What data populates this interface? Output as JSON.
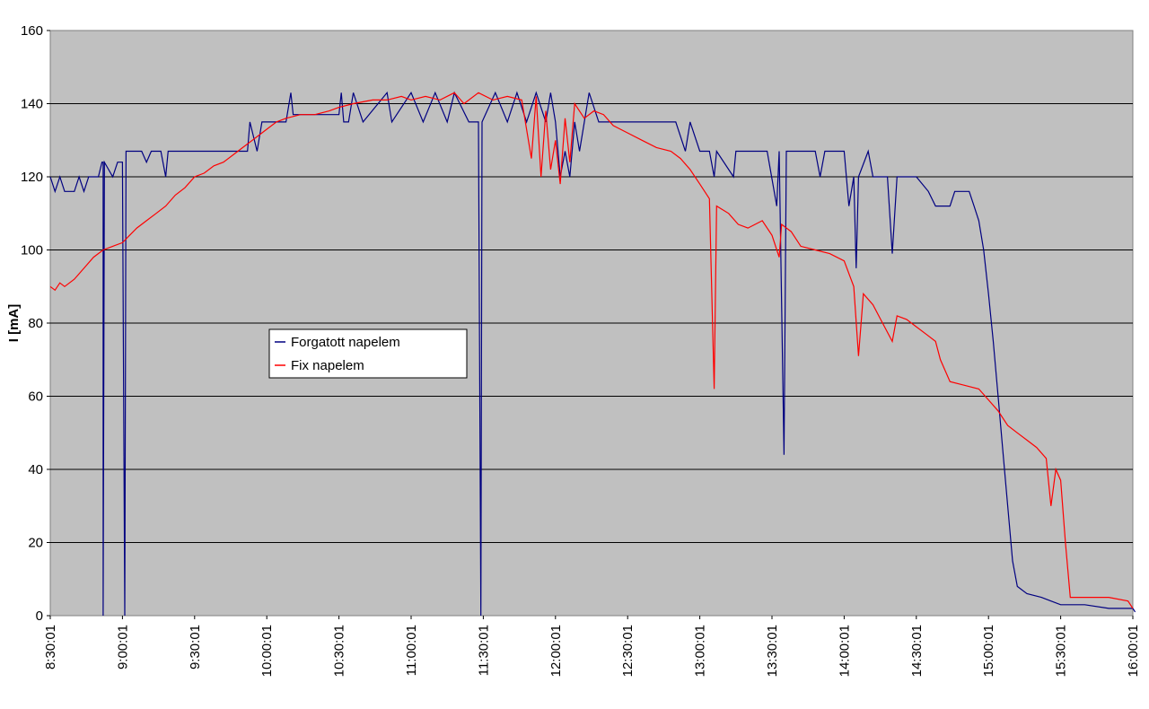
{
  "chart_data": {
    "type": "line",
    "title": "",
    "xlabel": "",
    "ylabel": "I [mA]",
    "ylim": [
      0,
      160
    ],
    "xlim": [
      "8:30:01",
      "16:00:01"
    ],
    "yticks": [
      0,
      20,
      40,
      60,
      80,
      100,
      120,
      140,
      160
    ],
    "xticks": [
      "8:30:01",
      "9:00:01",
      "9:30:01",
      "10:00:01",
      "10:30:01",
      "11:00:01",
      "11:30:01",
      "12:00:01",
      "12:30:01",
      "13:00:01",
      "13:30:01",
      "14:00:01",
      "14:30:01",
      "15:00:01",
      "15:30:01",
      "16:00:01"
    ],
    "grid": "horizontal",
    "background": "#c0c0c0",
    "legend_position": "middle-left",
    "series": [
      {
        "name": "Forgatott napelem",
        "color": "#000080",
        "points": [
          [
            "8:30:01",
            120
          ],
          [
            "8:32:00",
            116
          ],
          [
            "8:34:00",
            120
          ],
          [
            "8:36:00",
            116
          ],
          [
            "8:40:00",
            116
          ],
          [
            "8:42:00",
            120
          ],
          [
            "8:44:00",
            116
          ],
          [
            "8:46:00",
            120
          ],
          [
            "8:50:00",
            120
          ],
          [
            "8:52:00",
            124
          ],
          [
            "8:56:00",
            120
          ],
          [
            "8:58:00",
            124
          ],
          [
            "8:51:30",
            124
          ],
          [
            "8:52:00",
            0
          ],
          [
            "8:52:30",
            124
          ],
          [
            "9:00:00",
            124
          ],
          [
            "9:01:00",
            0
          ],
          [
            "9:01:30",
            127
          ],
          [
            "9:08:00",
            127
          ],
          [
            "9:10:00",
            124
          ],
          [
            "9:12:00",
            127
          ],
          [
            "9:16:00",
            127
          ],
          [
            "9:18:00",
            120
          ],
          [
            "9:19:00",
            127
          ],
          [
            "9:30:00",
            127
          ],
          [
            "9:45:00",
            127
          ],
          [
            "9:52:00",
            127
          ],
          [
            "9:53:00",
            135
          ],
          [
            "9:56:00",
            127
          ],
          [
            "9:58:00",
            135
          ],
          [
            "10:02:00",
            135
          ],
          [
            "10:08:00",
            135
          ],
          [
            "10:10:00",
            143
          ],
          [
            "10:11:00",
            137
          ],
          [
            "10:30:00",
            137
          ],
          [
            "10:31:00",
            143
          ],
          [
            "10:32:00",
            135
          ],
          [
            "10:34:00",
            135
          ],
          [
            "10:36:00",
            143
          ],
          [
            "10:40:00",
            135
          ],
          [
            "10:50:00",
            143
          ],
          [
            "10:52:00",
            135
          ],
          [
            "11:00:00",
            143
          ],
          [
            "11:05:00",
            135
          ],
          [
            "11:10:00",
            143
          ],
          [
            "11:15:00",
            135
          ],
          [
            "11:18:00",
            143
          ],
          [
            "11:24:00",
            135
          ],
          [
            "11:28:00",
            135
          ],
          [
            "11:29:00",
            0
          ],
          [
            "11:29:30",
            135
          ],
          [
            "11:35:00",
            143
          ],
          [
            "11:40:00",
            135
          ],
          [
            "11:44:00",
            143
          ],
          [
            "11:48:00",
            135
          ],
          [
            "11:52:00",
            143
          ],
          [
            "11:56:00",
            135
          ],
          [
            "11:58:00",
            143
          ],
          [
            "12:00:00",
            135
          ],
          [
            "12:02:00",
            120
          ],
          [
            "12:04:00",
            127
          ],
          [
            "12:06:00",
            120
          ],
          [
            "12:08:00",
            135
          ],
          [
            "12:10:00",
            127
          ],
          [
            "12:14:00",
            143
          ],
          [
            "12:18:00",
            135
          ],
          [
            "12:20:00",
            135
          ],
          [
            "12:40:00",
            135
          ],
          [
            "12:50:00",
            135
          ],
          [
            "12:54:00",
            127
          ],
          [
            "12:56:00",
            135
          ],
          [
            "13:00:00",
            127
          ],
          [
            "13:04:00",
            127
          ],
          [
            "13:06:00",
            120
          ],
          [
            "13:07:00",
            127
          ],
          [
            "13:14:00",
            120
          ],
          [
            "13:15:00",
            127
          ],
          [
            "13:28:00",
            127
          ],
          [
            "13:32:00",
            112
          ],
          [
            "13:33:00",
            127
          ],
          [
            "13:35:00",
            44
          ],
          [
            "13:36:00",
            127
          ],
          [
            "13:48:00",
            127
          ],
          [
            "13:50:00",
            120
          ],
          [
            "13:52:00",
            127
          ],
          [
            "14:00:00",
            127
          ],
          [
            "14:02:00",
            112
          ],
          [
            "14:04:00",
            120
          ],
          [
            "14:05:00",
            95
          ],
          [
            "14:06:00",
            120
          ],
          [
            "14:10:00",
            127
          ],
          [
            "14:12:00",
            120
          ],
          [
            "14:18:00",
            120
          ],
          [
            "14:20:00",
            99
          ],
          [
            "14:22:00",
            120
          ],
          [
            "14:30:00",
            120
          ],
          [
            "14:35:00",
            116
          ],
          [
            "14:38:00",
            112
          ],
          [
            "14:44:00",
            112
          ],
          [
            "14:46:00",
            116
          ],
          [
            "14:52:00",
            116
          ],
          [
            "14:54:00",
            112
          ],
          [
            "14:56:00",
            108
          ],
          [
            "14:58:00",
            100
          ],
          [
            "15:00:00",
            88
          ],
          [
            "15:02:00",
            75
          ],
          [
            "15:04:00",
            60
          ],
          [
            "15:06:00",
            45
          ],
          [
            "15:08:00",
            30
          ],
          [
            "15:10:00",
            15
          ],
          [
            "15:12:00",
            8
          ],
          [
            "15:16:00",
            6
          ],
          [
            "15:22:00",
            5
          ],
          [
            "15:26:00",
            4
          ],
          [
            "15:30:00",
            3
          ],
          [
            "15:40:00",
            3
          ],
          [
            "15:50:00",
            2
          ],
          [
            "16:00:00",
            2
          ],
          [
            "16:01:00",
            1
          ]
        ]
      },
      {
        "name": "Fix napelem",
        "color": "#ff0000",
        "points": [
          [
            "8:30:01",
            90
          ],
          [
            "8:32:00",
            89
          ],
          [
            "8:34:00",
            91
          ],
          [
            "8:36:00",
            90
          ],
          [
            "8:40:00",
            92
          ],
          [
            "8:44:00",
            95
          ],
          [
            "8:48:00",
            98
          ],
          [
            "8:52:00",
            100
          ],
          [
            "8:56:00",
            101
          ],
          [
            "9:00:00",
            102
          ],
          [
            "9:03:00",
            104
          ],
          [
            "9:06:00",
            106
          ],
          [
            "9:10:00",
            108
          ],
          [
            "9:14:00",
            110
          ],
          [
            "9:18:00",
            112
          ],
          [
            "9:22:00",
            115
          ],
          [
            "9:26:00",
            117
          ],
          [
            "9:30:00",
            120
          ],
          [
            "9:34:00",
            121
          ],
          [
            "9:38:00",
            123
          ],
          [
            "9:42:00",
            124
          ],
          [
            "9:46:00",
            126
          ],
          [
            "9:50:00",
            128
          ],
          [
            "9:54:00",
            130
          ],
          [
            "9:58:00",
            132
          ],
          [
            "10:00:00",
            133
          ],
          [
            "10:04:00",
            135
          ],
          [
            "10:08:00",
            136
          ],
          [
            "10:14:00",
            137
          ],
          [
            "10:20:00",
            137
          ],
          [
            "10:26:00",
            138
          ],
          [
            "10:30:00",
            139
          ],
          [
            "10:36:00",
            140
          ],
          [
            "10:44:00",
            141
          ],
          [
            "10:50:00",
            141
          ],
          [
            "10:56:00",
            142
          ],
          [
            "11:00:00",
            141
          ],
          [
            "11:06:00",
            142
          ],
          [
            "11:12:00",
            141
          ],
          [
            "11:18:00",
            143
          ],
          [
            "11:22:00",
            140
          ],
          [
            "11:28:00",
            143
          ],
          [
            "11:34:00",
            141
          ],
          [
            "11:40:00",
            142
          ],
          [
            "11:46:00",
            141
          ],
          [
            "11:50:00",
            125
          ],
          [
            "11:52:00",
            142
          ],
          [
            "11:54:00",
            120
          ],
          [
            "11:56:00",
            138
          ],
          [
            "11:58:00",
            122
          ],
          [
            "12:00:00",
            130
          ],
          [
            "12:02:00",
            118
          ],
          [
            "12:04:00",
            136
          ],
          [
            "12:06:00",
            124
          ],
          [
            "12:08:00",
            140
          ],
          [
            "12:12:00",
            136
          ],
          [
            "12:16:00",
            138
          ],
          [
            "12:20:00",
            137
          ],
          [
            "12:24:00",
            134
          ],
          [
            "12:30:00",
            132
          ],
          [
            "12:36:00",
            130
          ],
          [
            "12:42:00",
            128
          ],
          [
            "12:48:00",
            127
          ],
          [
            "12:52:00",
            125
          ],
          [
            "12:56:00",
            122
          ],
          [
            "13:00:00",
            118
          ],
          [
            "13:04:00",
            114
          ],
          [
            "13:06:00",
            62
          ],
          [
            "13:07:00",
            112
          ],
          [
            "13:12:00",
            110
          ],
          [
            "13:16:00",
            107
          ],
          [
            "13:20:00",
            106
          ],
          [
            "13:26:00",
            108
          ],
          [
            "13:30:00",
            104
          ],
          [
            "13:33:00",
            98
          ],
          [
            "13:34:00",
            107
          ],
          [
            "13:38:00",
            105
          ],
          [
            "13:42:00",
            101
          ],
          [
            "13:48:00",
            100
          ],
          [
            "13:54:00",
            99
          ],
          [
            "14:00:00",
            97
          ],
          [
            "14:04:00",
            90
          ],
          [
            "14:06:00",
            71
          ],
          [
            "14:08:00",
            88
          ],
          [
            "14:12:00",
            85
          ],
          [
            "14:16:00",
            80
          ],
          [
            "14:20:00",
            75
          ],
          [
            "14:22:00",
            82
          ],
          [
            "14:26:00",
            81
          ],
          [
            "14:30:00",
            79
          ],
          [
            "14:34:00",
            77
          ],
          [
            "14:38:00",
            75
          ],
          [
            "14:40:00",
            70
          ],
          [
            "14:44:00",
            64
          ],
          [
            "14:50:00",
            63
          ],
          [
            "14:56:00",
            62
          ],
          [
            "15:00:00",
            59
          ],
          [
            "15:04:00",
            56
          ],
          [
            "15:08:00",
            52
          ],
          [
            "15:12:00",
            50
          ],
          [
            "15:16:00",
            48
          ],
          [
            "15:20:00",
            46
          ],
          [
            "15:24:00",
            43
          ],
          [
            "15:26:00",
            30
          ],
          [
            "15:28:00",
            40
          ],
          [
            "15:30:00",
            37
          ],
          [
            "15:32:00",
            20
          ],
          [
            "15:34:00",
            5
          ],
          [
            "15:40:00",
            5
          ],
          [
            "15:50:00",
            5
          ],
          [
            "15:58:00",
            4
          ],
          [
            "16:00:00",
            2
          ]
        ]
      }
    ]
  }
}
